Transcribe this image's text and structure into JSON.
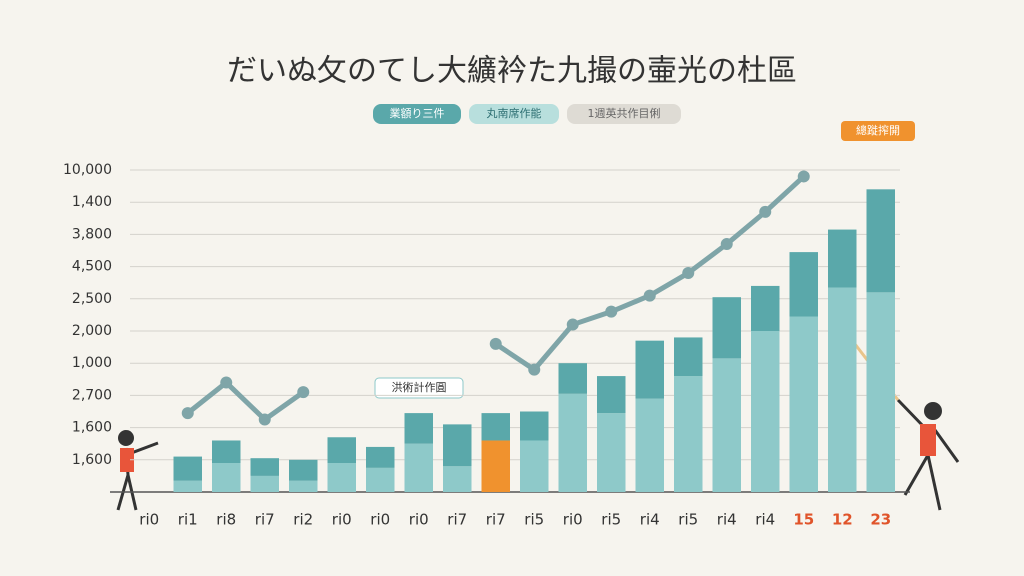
{
  "chart_data": {
    "type": "stacked_bar_line",
    "title": "だいぬ攵のてし大纊衿た九撮の壷光の杜區",
    "annotations": [
      "洪術計作圓",
      "總蹝搾開"
    ],
    "categories": [
      "ri0",
      "ri1",
      "ri8",
      "ri7",
      "ri2",
      "ri0",
      "ri0",
      "ri0",
      "ri7",
      "ri7",
      "ri5",
      "ri0",
      "ri5",
      "ri4",
      "ri5",
      "ri4",
      "ri4",
      "15",
      "12",
      "23"
    ],
    "category_colors": [
      "#333",
      "#333",
      "#333",
      "#333",
      "#333",
      "#333",
      "#333",
      "#333",
      "#333",
      "#333",
      "#333",
      "#333",
      "#333",
      "#333",
      "#333",
      "#333",
      "#333",
      "#e0542a",
      "#e0542a",
      "#e0542a"
    ],
    "series": [
      {
        "name": "業額り三件",
        "color": "#8ec9c9",
        "colors": [
          "#8ec9c9",
          "#8ec9c9",
          "#8ec9c9",
          "#8ec9c9",
          "#8ec9c9",
          "#8ec9c9",
          "#8ec9c9",
          "#8ec9c9",
          "#8ec9c9",
          "#f0922e",
          "#8ec9c9",
          "#8ec9c9",
          "#8ec9c9",
          "#8ec9c9",
          "#8ec9c9",
          "#8ec9c9",
          "#8ec9c9",
          "#8ec9c9",
          "#8ec9c9",
          "#8ec9c9"
        ],
        "values": [
          null,
          0.35,
          0.9,
          0.5,
          0.35,
          0.9,
          0.75,
          1.5,
          0.8,
          1.6,
          1.6,
          3.05,
          2.45,
          2.9,
          3.6,
          4.15,
          5.0,
          5.45,
          6.35,
          6.2
        ]
      },
      {
        "name": "丸南席作能",
        "color": "#5aa8aa",
        "values": [
          null,
          0.75,
          0.7,
          0.55,
          0.65,
          0.8,
          0.65,
          0.95,
          1.3,
          0.85,
          0.9,
          0.95,
          1.15,
          1.8,
          1.2,
          1.9,
          1.4,
          2.0,
          1.8,
          3.2
        ]
      },
      {
        "name": "1週英共作目俐",
        "color": "#7fa5a8",
        "kind": "line",
        "values": [
          null,
          2.45,
          3.4,
          2.25,
          3.1,
          null,
          null,
          null,
          null,
          4.6,
          3.8,
          5.2,
          5.6,
          6.1,
          6.8,
          7.7,
          8.7,
          9.8,
          null,
          null
        ]
      }
    ],
    "ylim": [
      0,
      10
    ],
    "yticks": [
      {
        "value": 1,
        "label": "1,600"
      },
      {
        "value": 2,
        "label": "1,600"
      },
      {
        "value": 3,
        "label": "2,700"
      },
      {
        "value": 4,
        "label": "1,000"
      },
      {
        "value": 5,
        "label": "2,000"
      },
      {
        "value": 6,
        "label": "2,500"
      },
      {
        "value": 7,
        "label": "4,500"
      },
      {
        "value": 8,
        "label": "3,800"
      },
      {
        "value": 9,
        "label": "1,400"
      },
      {
        "value": 10,
        "label": "10,000"
      }
    ],
    "grid": true
  }
}
